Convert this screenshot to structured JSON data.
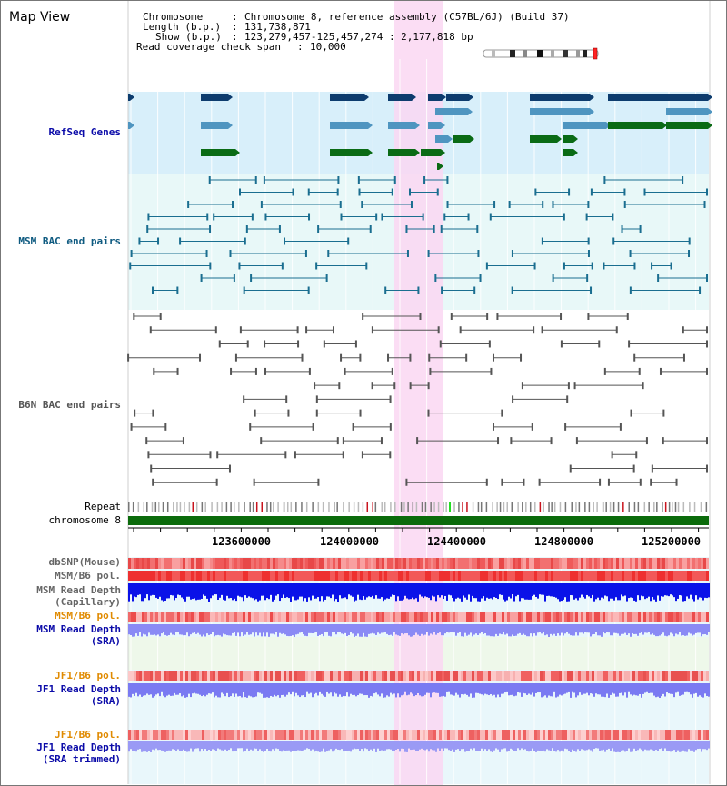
{
  "view": {
    "title": "Map View"
  },
  "info": {
    "chromosome_label": "Chromosome",
    "chromosome_value": "Chromosome 8, reference assembly (C57BL/6J) (Build 37)",
    "length_label": "Length (b.p.)",
    "length_value": "131,738,871",
    "show_label": "Show (b.p.)",
    "show_value": "123,279,457-125,457,274 : 2,177,818 bp",
    "coverage_label": "Read coverage check span",
    "coverage_value": "10,000",
    "sep": ":"
  },
  "tracks": {
    "refseq": "RefSeq Genes",
    "msm_bac": "MSM BAC end pairs",
    "b6n_bac": "B6N BAC end pairs",
    "repeat": "Repeat",
    "chromosome": "chromosome 8",
    "dbsnp": "dbSNP(Mouse)",
    "msm_b6_pol": "MSM/B6 pol.",
    "msm_depth_cap_1": "MSM Read Depth",
    "msm_depth_cap_2": "(Capillary)",
    "msm_b6_pol_sra": "MSM/B6 pol.",
    "msm_depth_sra_1": "MSM Read Depth",
    "msm_depth_sra_2": "(SRA)",
    "jf1_b6_pol": "JF1/B6 pol.",
    "jf1_depth_1": "JF1 Read Depth",
    "jf1_depth_2": "(SRA)",
    "jf1_b6_pol_trim": "JF1/B6 pol.",
    "jf1_trim_1": "JF1 Read Depth",
    "jf1_trim_2": "(SRA trimmed)"
  },
  "axis": {
    "ticks": [
      "123600000",
      "124000000",
      "124400000",
      "124800000",
      "125200000"
    ]
  },
  "colors": {
    "highlight": "#fad7f2",
    "refseq_bg": "#d8effa",
    "msm_bac_bg": "#e8f8f8",
    "gene_dark": "#0d3c6e",
    "gene_mid": "#4f95c0",
    "gene_green": "#0a6b15",
    "msm_pair": "#1a6e90",
    "b6n_pair": "#555555",
    "chromosome_bar": "#0b6b0b",
    "depth_blue": "#0a12e8",
    "depth_light": "#8a8af5",
    "snp_red": "#f27070"
  }
}
